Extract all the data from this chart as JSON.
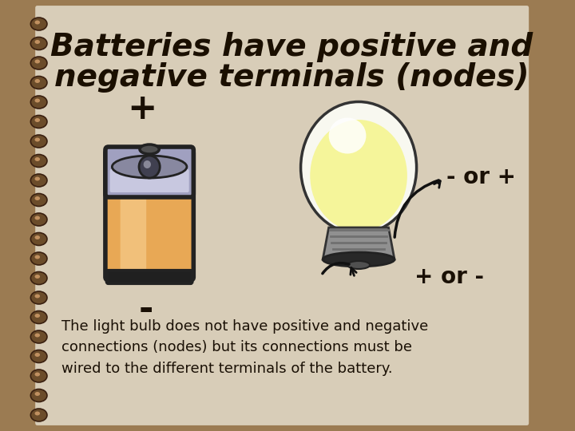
{
  "title_line1": "Batteries have positive and",
  "title_line2": "negative terminals (nodes)",
  "plus_battery": "+",
  "minus_battery": "-",
  "minus_bulb": "- or +",
  "plus_bulb": "+ or -",
  "footer": "The light bulb does not have positive and negative\nconnections (nodes) but its connections must be\nwired to the different terminals of the battery.",
  "bg_outer": "#9b7b52",
  "bg_inner": "#d8cdb8",
  "title_color": "#1a0f00",
  "text_color": "#1a1005",
  "spiral_color": "#6b4c2a",
  "battery_body": "#e8a855",
  "battery_body_light": "#f5cb8a",
  "battery_cap_top": "#8888a0",
  "battery_cap_silver": "#a0a0c0",
  "battery_nub": "#606060",
  "battery_dark": "#222222",
  "bulb_white": "#f8f8f0",
  "bulb_yellow": "#f5f59a",
  "bulb_base_gray": "#a0a0a0",
  "bulb_base_dark": "#303030",
  "arrow_color": "#111111"
}
